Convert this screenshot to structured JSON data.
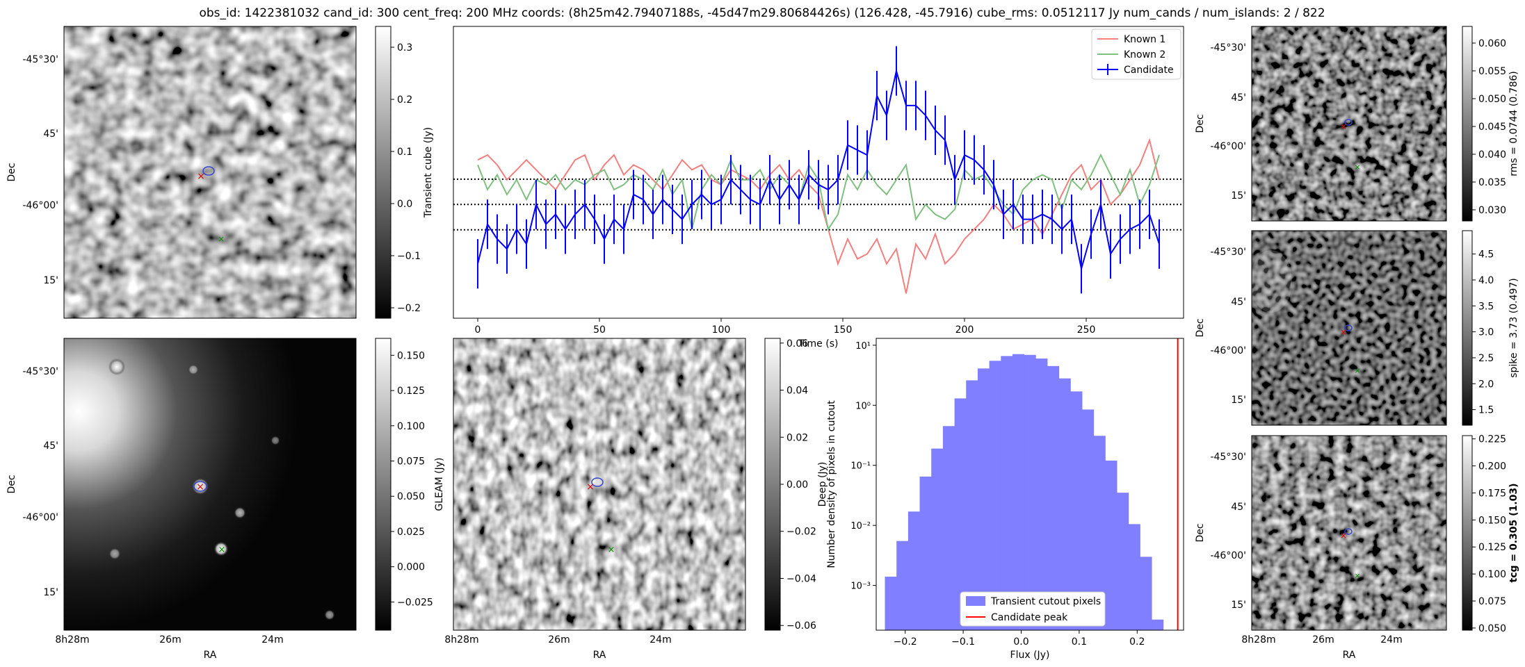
{
  "title": "obs_id: 1422381032 cand_id: 300 cent_freq: 200 MHz coords: (8h25m42.79407188s, -45d47m29.80684426s) (126.428, -45.7916) cube_rms: 0.0512117 Jy num_cands / num_islands: 2 / 822",
  "sky_axes": {
    "dec_ticks": [
      "-45°30'",
      "45'",
      "-46°00'",
      "15'"
    ],
    "ra_ticks": [
      "8h28m",
      "26m",
      "24m"
    ],
    "ra_label": "RA",
    "dec_label": "Dec"
  },
  "colorbars": {
    "transient": {
      "label": "Transient cube (Jy)",
      "range": [
        -0.22,
        0.34
      ],
      "ticks": [
        "0.3",
        "0.2",
        "0.1",
        "0.0",
        "−0.1",
        "−0.2"
      ],
      "tick_values": [
        0.3,
        0.2,
        0.1,
        0.0,
        -0.1,
        -0.2
      ]
    },
    "gleam": {
      "label": "GLEAM (Jy)",
      "range": [
        -0.045,
        0.162
      ],
      "ticks": [
        "0.150",
        "0.125",
        "0.100",
        "0.075",
        "0.050",
        "0.025",
        "0.000",
        "−0.025"
      ],
      "tick_values": [
        0.15,
        0.125,
        0.1,
        0.075,
        0.05,
        0.025,
        0.0,
        -0.025
      ]
    },
    "deep": {
      "label": "Deep (Jy)",
      "range": [
        -0.062,
        0.062
      ],
      "ticks": [
        "0.06",
        "0.04",
        "0.02",
        "0.00",
        "−0.02",
        "−0.04",
        "−0.06"
      ],
      "tick_values": [
        0.06,
        0.04,
        0.02,
        0.0,
        -0.02,
        -0.04,
        -0.06
      ]
    },
    "rms": {
      "label": "rms = 0.0744 (0.786)",
      "range": [
        0.028,
        0.063
      ],
      "ticks": [
        "0.060",
        "0.055",
        "0.050",
        "0.045",
        "0.040",
        "0.035",
        "0.030"
      ],
      "tick_values": [
        0.06,
        0.055,
        0.05,
        0.045,
        0.04,
        0.035,
        0.03
      ]
    },
    "spike": {
      "label": "spike = 3.73 (0.497)",
      "range": [
        1.2,
        4.95
      ],
      "ticks": [
        "4.5",
        "4.0",
        "3.5",
        "3.0",
        "2.5",
        "2.0",
        "1.5"
      ],
      "tick_values": [
        4.5,
        4.0,
        3.5,
        3.0,
        2.5,
        2.0,
        1.5
      ]
    },
    "tcg": {
      "label": "tcg = 0.305 (1.03)",
      "range": [
        0.048,
        0.228
      ],
      "ticks": [
        "0.225",
        "0.200",
        "0.175",
        "0.150",
        "0.125",
        "0.100",
        "0.075",
        "0.050"
      ],
      "tick_values": [
        0.225,
        0.2,
        0.175,
        0.15,
        0.125,
        0.1,
        0.075,
        0.05
      ]
    }
  },
  "chart_data": [
    {
      "type": "line",
      "name": "lightcurve",
      "xlabel": "Time (s)",
      "x_ticks": [
        "0",
        "50",
        "100",
        "150",
        "200",
        "250"
      ],
      "xlim": [
        -10,
        290
      ],
      "ylim": [
        -0.23,
        0.36
      ],
      "hlines": [
        -0.0512,
        0.0,
        0.0512
      ],
      "legend": [
        "Known 1",
        "Known 2",
        "Candidate"
      ],
      "legend_position": "top-right",
      "t_start": 0,
      "t_step": 4,
      "series": [
        {
          "name": "Known 1",
          "color": "#f47f7f",
          "values": [
            0.09,
            0.1,
            0.08,
            0.05,
            0.07,
            0.09,
            0.07,
            0.05,
            0.03,
            0.06,
            0.09,
            0.1,
            0.05,
            0.08,
            0.1,
            0.06,
            0.08,
            0.07,
            0.05,
            0.03,
            0.06,
            0.09,
            0.07,
            0.08,
            0.05,
            0.04,
            0.07,
            0.06,
            0.05,
            0.03,
            0.06,
            0.08,
            0.05,
            0.07,
            0.04,
            0.02,
            -0.05,
            -0.12,
            -0.07,
            -0.11,
            -0.1,
            -0.07,
            -0.12,
            -0.09,
            -0.18,
            -0.08,
            -0.11,
            -0.06,
            -0.12,
            -0.1,
            -0.07,
            -0.05,
            -0.03,
            0.0,
            -0.02,
            -0.05,
            -0.04,
            -0.03,
            -0.06,
            -0.02,
            0.02,
            0.06,
            0.08,
            0.03,
            0.05,
            0.0,
            0.02,
            0.05,
            0.08,
            0.13,
            0.05
          ]
        },
        {
          "name": "Known 2",
          "color": "#7fbf7f",
          "values": [
            0.08,
            0.03,
            0.06,
            0.02,
            0.05,
            0.01,
            0.05,
            0.04,
            0.06,
            0.03,
            0.05,
            0.04,
            0.06,
            0.07,
            0.03,
            0.04,
            0.06,
            0.05,
            0.03,
            0.07,
            0.02,
            0.05,
            -0.05,
            0.03,
            0.06,
            0.04,
            0.09,
            0.05,
            0.05,
            0.07,
            0.03,
            0.06,
            0.04,
            0.01,
            0.08,
            0.05,
            -0.05,
            -0.02,
            0.06,
            0.03,
            0.07,
            0.04,
            0.02,
            0.05,
            0.08,
            -0.03,
            0.0,
            -0.02,
            -0.03,
            -0.01,
            0.07,
            0.05,
            0.06,
            0.03,
            0.0,
            -0.02,
            0.03,
            0.05,
            0.06,
            0.05,
            -0.01,
            0.05,
            0.03,
            0.06,
            0.1,
            0.06,
            0.02,
            0.07,
            0.0,
            0.04,
            0.1
          ]
        },
        {
          "name": "Candidate",
          "color": "#0000ff",
          "err": 0.05,
          "values": [
            -0.12,
            -0.04,
            -0.07,
            -0.09,
            -0.05,
            -0.08,
            0.0,
            -0.04,
            -0.02,
            -0.05,
            -0.02,
            0.0,
            -0.03,
            -0.07,
            -0.03,
            -0.05,
            0.02,
            0.01,
            -0.02,
            0.01,
            -0.01,
            -0.03,
            0.0,
            0.02,
            0.0,
            0.01,
            0.05,
            0.03,
            0.01,
            0.0,
            0.05,
            0.01,
            0.04,
            0.01,
            0.06,
            0.04,
            0.03,
            0.05,
            0.12,
            0.11,
            0.1,
            0.22,
            0.18,
            0.27,
            0.2,
            0.2,
            0.18,
            0.15,
            0.13,
            0.05,
            0.1,
            0.09,
            0.07,
            0.04,
            -0.02,
            0.0,
            -0.03,
            -0.03,
            -0.02,
            -0.03,
            -0.05,
            -0.03,
            -0.13,
            -0.06,
            0.0,
            -0.1,
            -0.07,
            -0.05,
            -0.04,
            -0.02,
            -0.08
          ]
        }
      ]
    },
    {
      "type": "bar",
      "name": "histogram",
      "xlabel": "Flux (Jy)",
      "ylabel": "Number density of pixels in cutout",
      "yscale": "log",
      "ylim": [
        0.00018,
        13
      ],
      "xlim": [
        -0.25,
        0.28
      ],
      "x_ticks": [
        "−0.2",
        "−0.1",
        "0.0",
        "0.1",
        "0.2"
      ],
      "x_tick_values": [
        -0.2,
        -0.1,
        0.0,
        0.1,
        0.2
      ],
      "y_ticks": [
        "10¹",
        "10⁰",
        "10⁻¹",
        "10⁻²",
        "10⁻³"
      ],
      "y_tick_values": [
        10,
        1,
        0.1,
        0.01,
        0.001
      ],
      "bin_left": -0.235,
      "bin_width": 0.02,
      "values": [
        0.0014,
        0.0055,
        0.017,
        0.065,
        0.19,
        0.45,
        1.3,
        2.6,
        4.1,
        5.5,
        6.6,
        7.1,
        6.9,
        6.0,
        4.5,
        2.8,
        1.7,
        0.85,
        0.31,
        0.12,
        0.035,
        0.0105,
        0.003,
        0.00027
      ],
      "candidate_peak": 0.27,
      "legend": [
        "Transient cutout pixels",
        "Candidate peak"
      ],
      "legend_position": "bottom-center"
    }
  ]
}
